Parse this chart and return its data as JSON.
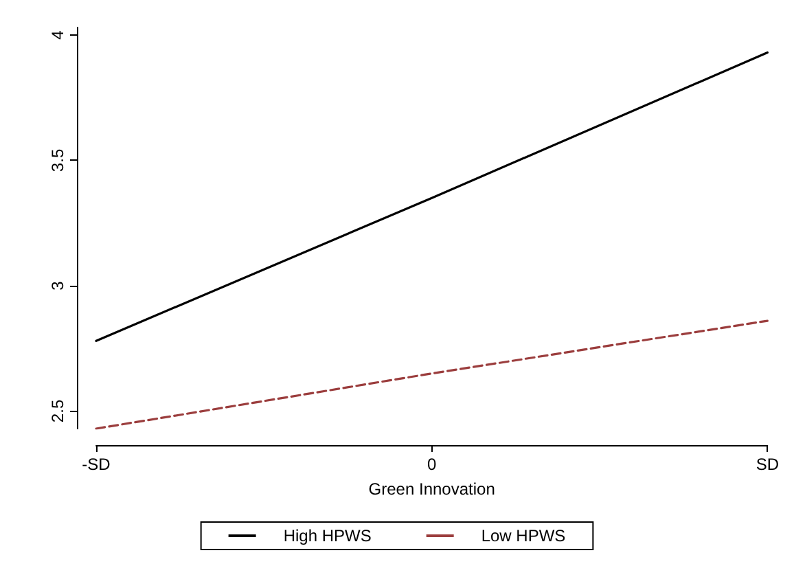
{
  "chart_data": {
    "type": "line",
    "xlabel": "Green Innovation",
    "categories": [
      "-SD",
      "0",
      "SD"
    ],
    "ylim": [
      2.43,
      4.03
    ],
    "yticks": [
      2.5,
      3,
      3.5,
      4
    ],
    "series": [
      {
        "name": "High HPWS",
        "color": "#000000",
        "values": [
          2.78,
          3.35,
          3.93
        ],
        "line_style": "solid"
      },
      {
        "name": "Low HPWS",
        "color": "#9b3d3d",
        "values": [
          2.43,
          2.65,
          2.86
        ],
        "line_style": "dashed"
      }
    ],
    "grid": false,
    "legend": "bottom",
    "marker": "none"
  }
}
